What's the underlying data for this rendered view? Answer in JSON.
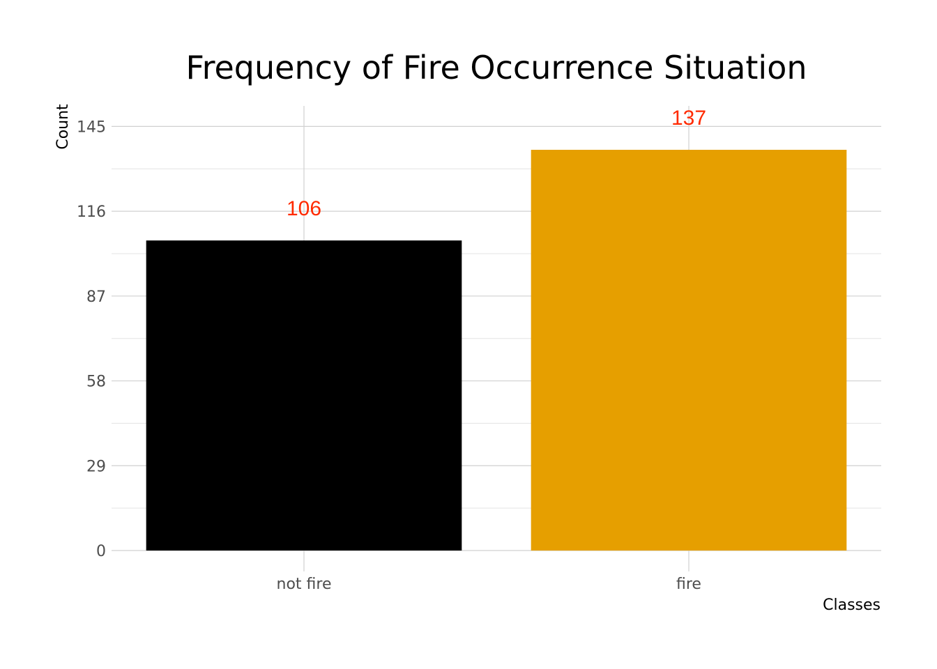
{
  "chart_data": {
    "type": "bar",
    "title": "Frequency of Fire Occurrence Situation",
    "xlabel": "Classes",
    "ylabel": "Count",
    "categories": [
      "not fire",
      "fire"
    ],
    "values": [
      106,
      137
    ],
    "data_labels": [
      "106",
      "137"
    ],
    "bar_colors": [
      "#000000",
      "#e69f00"
    ],
    "data_label_color": "#ff2a00",
    "y_ticks": [
      0,
      29,
      58,
      87,
      116,
      145
    ],
    "y_tick_labels": [
      "0",
      "29",
      "58",
      "87",
      "116",
      "145"
    ],
    "ylim": [
      0,
      152
    ],
    "grid": true,
    "legend": "none"
  }
}
